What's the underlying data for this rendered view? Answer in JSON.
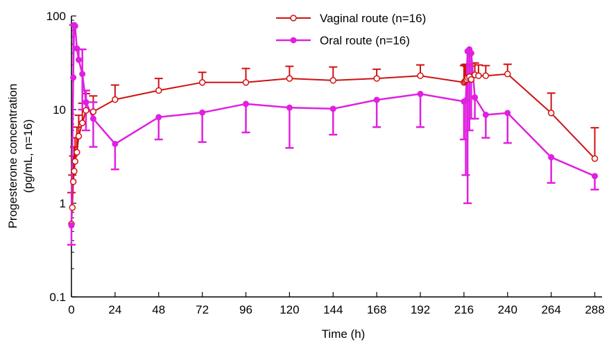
{
  "chart_data": {
    "type": "line",
    "title": "",
    "xlabel": "Time (h)",
    "ylabel_line1": "Progesterone concentration",
    "ylabel_line2": "(pg/mL, n=16)",
    "yscale": "log",
    "xlim": [
      0,
      292
    ],
    "ylim": [
      0.1,
      100
    ],
    "xticks": [
      0,
      24,
      48,
      72,
      96,
      120,
      144,
      168,
      192,
      216,
      240,
      264,
      288
    ],
    "xtick_labels": [
      "0",
      "24",
      "48",
      "72",
      "96",
      "120",
      "144",
      "168",
      "192",
      "216",
      "240",
      "264",
      "288"
    ],
    "yticks": [
      0.1,
      1,
      10,
      100
    ],
    "ytick_labels": [
      "0.1",
      "1",
      "10",
      "100"
    ],
    "grid": false,
    "legend_position": "top-center",
    "series": [
      {
        "name": "Vaginal route (n=16)",
        "color": "#d01010",
        "marker": "open-circle",
        "x": [
          0,
          0.5,
          1,
          1.5,
          2,
          3,
          4,
          6,
          8,
          12,
          24,
          48,
          72,
          96,
          120,
          144,
          168,
          192,
          216,
          216.5,
          217,
          217.5,
          218,
          219,
          220,
          222,
          224,
          228,
          240,
          264,
          288
        ],
        "y": [
          0.6,
          0.9,
          1.7,
          2.2,
          2.8,
          3.5,
          5.2,
          7.2,
          9.8,
          9.5,
          12.8,
          16,
          19.5,
          19.5,
          21.5,
          20.5,
          21.5,
          23,
          19.5,
          20,
          20.5,
          21,
          22,
          22.5,
          21,
          23.5,
          23,
          23,
          24,
          9.2,
          3.0
        ],
        "err_up": [
          0.7,
          1.1,
          1.5,
          1.8,
          2.2,
          3.0,
          3.5,
          4.5,
          5.0,
          4.5,
          5.5,
          5.5,
          5.5,
          8.0,
          7.5,
          8.0,
          5.5,
          7.0,
          10.0,
          10.0,
          10.0,
          8.0,
          8.0,
          8.0,
          8.0,
          8.0,
          7.0,
          6.5,
          6.5,
          5.8,
          3.4
        ]
      },
      {
        "name": "Oral route (n=16)",
        "color": "#e020e0",
        "marker": "filled-circle",
        "x": [
          0,
          1,
          1.5,
          2,
          3,
          4,
          6,
          8,
          12,
          24,
          48,
          72,
          96,
          120,
          144,
          168,
          192,
          216,
          217,
          218,
          219,
          220,
          222,
          228,
          240,
          264,
          288
        ],
        "y": [
          0.58,
          22,
          80,
          78,
          45,
          34,
          24,
          12,
          8,
          4.3,
          8.3,
          9.3,
          11.5,
          10.5,
          10.2,
          12.7,
          14.7,
          12.2,
          12.5,
          42,
          44,
          40,
          13.5,
          8.8,
          9.2,
          3.1,
          1.95
        ],
        "err_up": [
          0.0,
          58,
          0,
          0,
          0,
          10,
          20,
          4,
          4,
          0,
          0,
          0,
          0,
          0,
          0,
          0,
          0,
          0,
          0,
          0,
          0,
          0,
          0,
          0,
          0,
          0,
          0
        ],
        "err_down": [
          0.22,
          0,
          0,
          0,
          0,
          0,
          14,
          6,
          4,
          2.0,
          3.5,
          4.8,
          5.8,
          6.6,
          4.8,
          6.2,
          8.2,
          7.4,
          10.5,
          41,
          38,
          32,
          5.5,
          3.8,
          4.8,
          1.45,
          0.55
        ]
      }
    ]
  }
}
